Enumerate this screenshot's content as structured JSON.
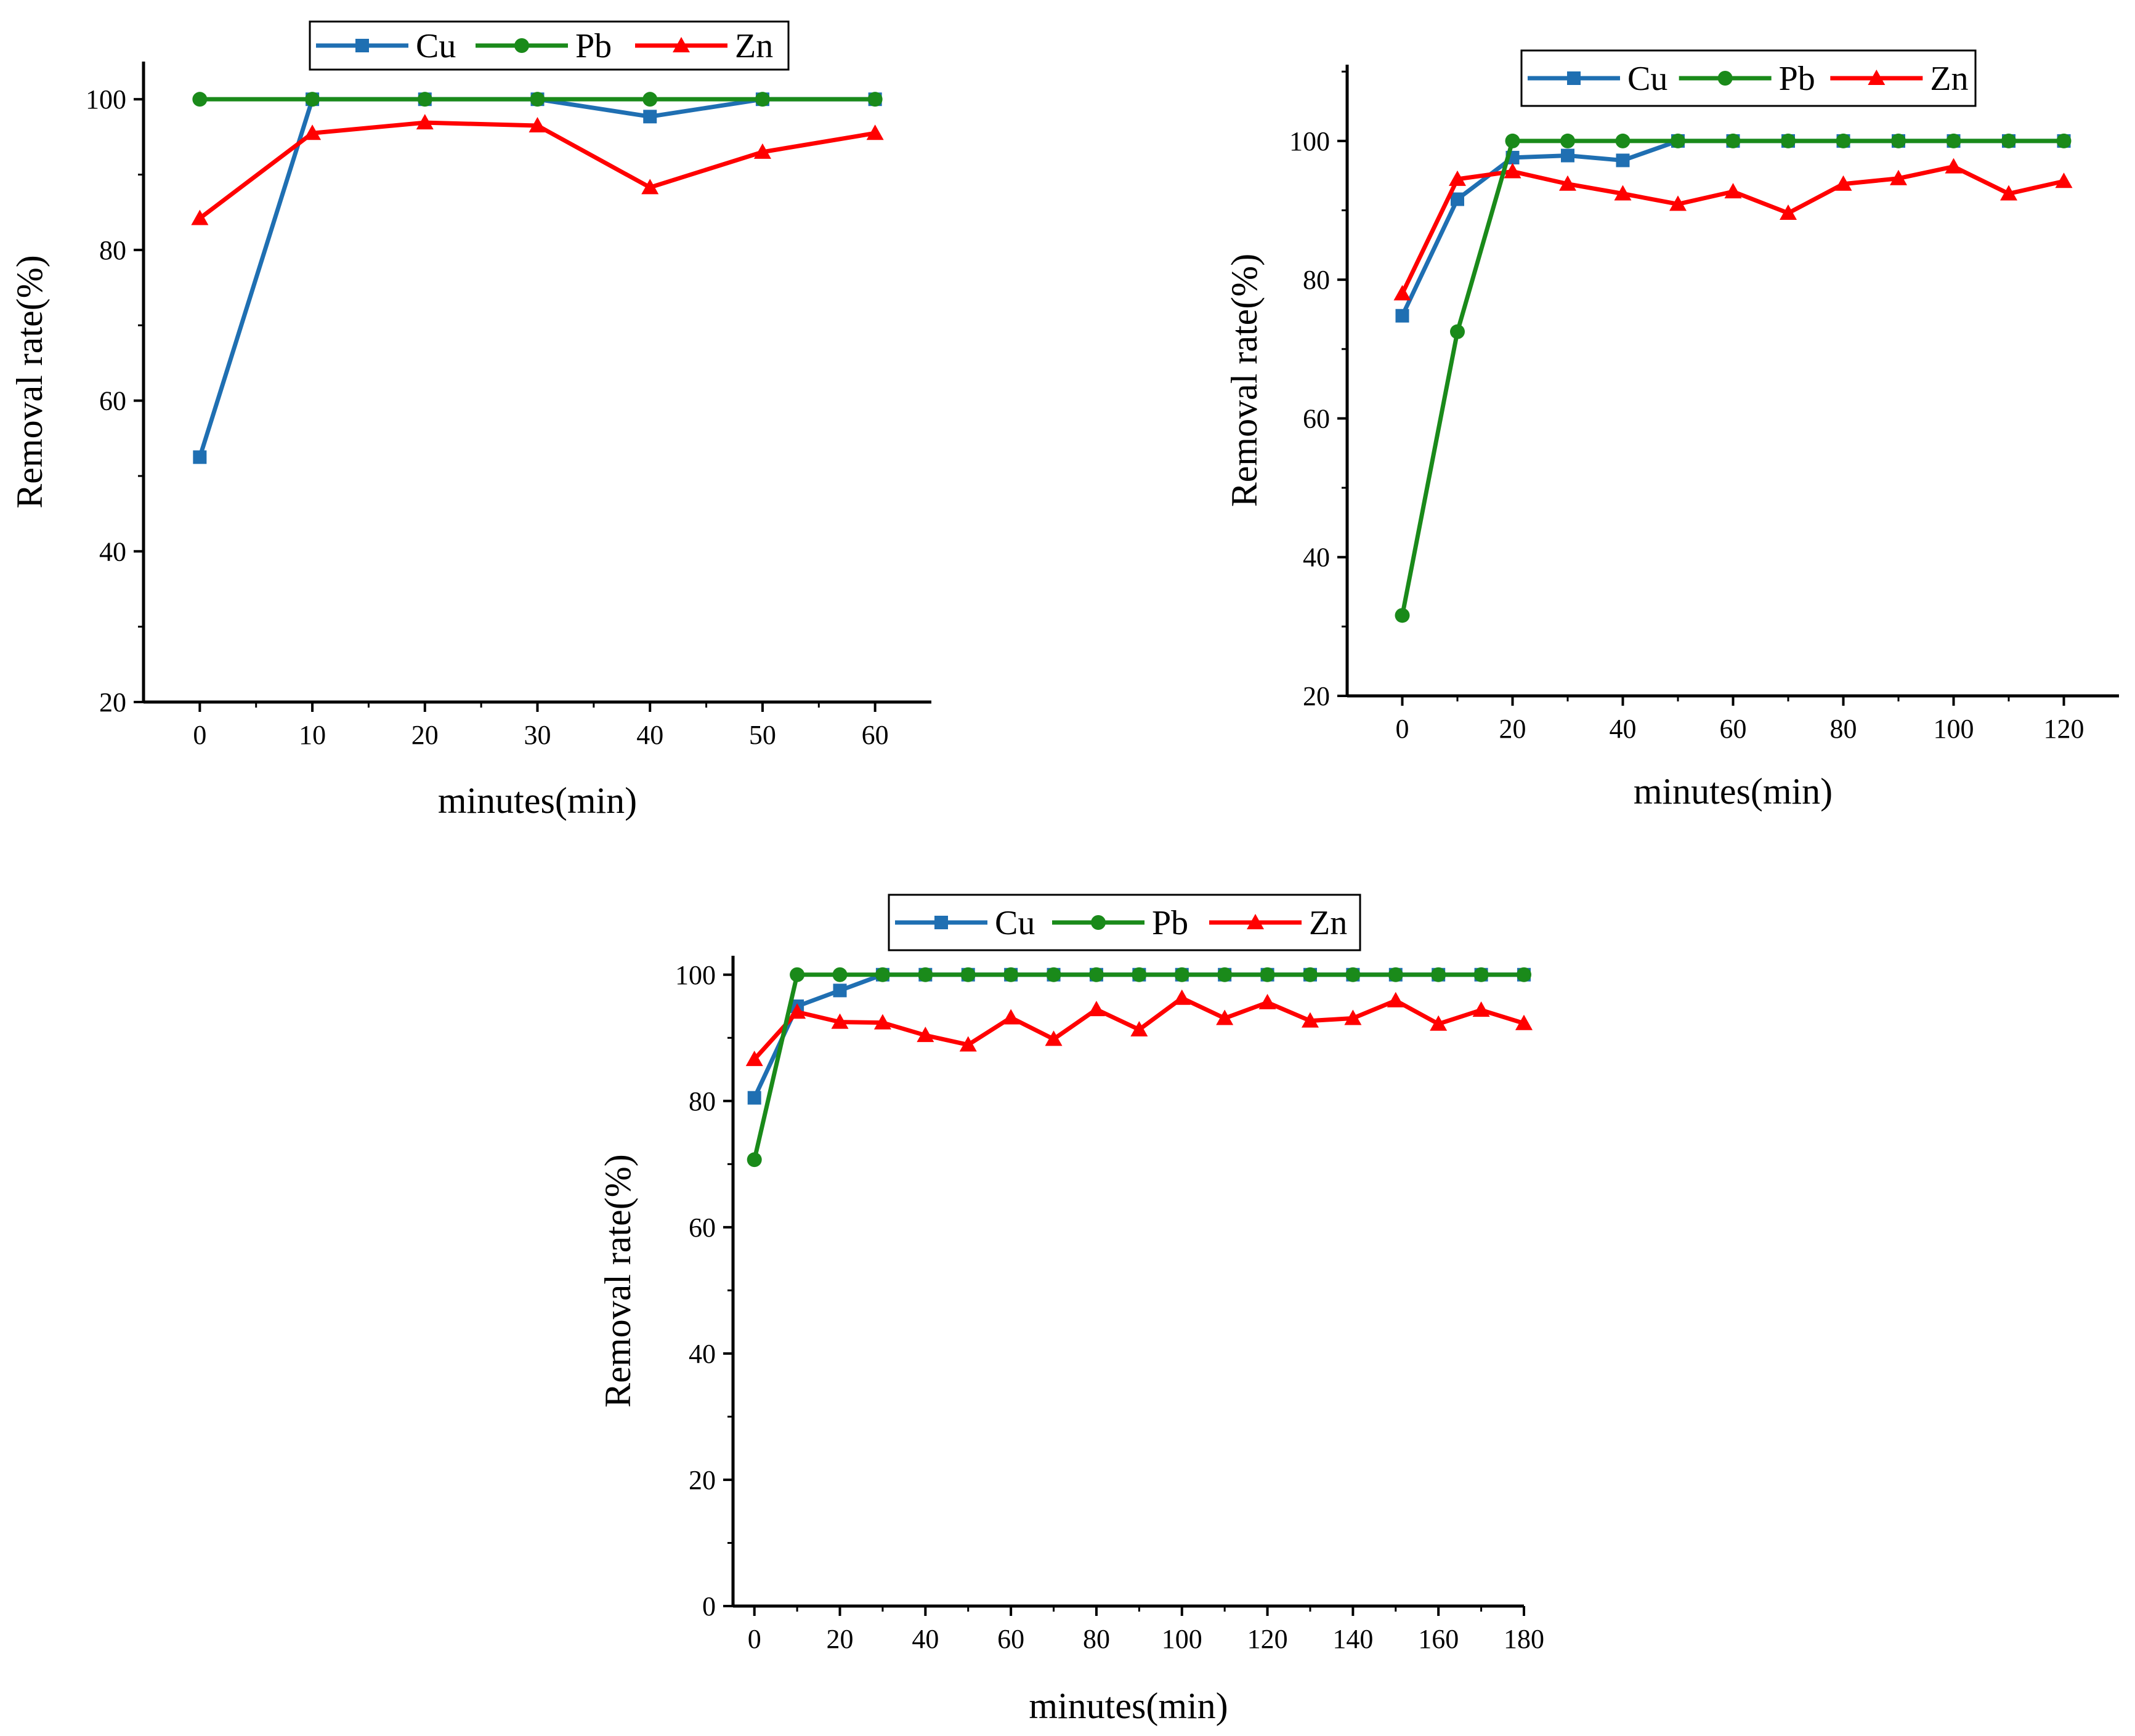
{
  "colors": {
    "Cu": "#1f6fb2",
    "Pb": "#1a8a1a",
    "Zn": "#ff0000",
    "axis": "#000000"
  },
  "chart_data": [
    {
      "type": "line",
      "xlabel": "minutes(min)",
      "ylabel": "Removal rate(%)",
      "xlim": [
        -5,
        65
      ],
      "ylim": [
        20,
        105
      ],
      "xticks": [
        0,
        10,
        20,
        30,
        40,
        50,
        60
      ],
      "yticks": [
        20,
        40,
        60,
        80,
        100
      ],
      "legend": [
        "Cu",
        "Pb",
        "Zn"
      ],
      "legend_position": "top",
      "series": [
        {
          "name": "Cu",
          "marker": "square",
          "x": [
            0,
            10,
            20,
            30,
            40,
            50,
            60
          ],
          "values": [
            52.5,
            100,
            100,
            100,
            97.7,
            100,
            100
          ]
        },
        {
          "name": "Pb",
          "marker": "circle",
          "x": [
            0,
            10,
            20,
            30,
            40,
            50,
            60
          ],
          "values": [
            100,
            100,
            100,
            100,
            100,
            100,
            100
          ]
        },
        {
          "name": "Zn",
          "marker": "triangle",
          "x": [
            0,
            10,
            20,
            30,
            40,
            50,
            60
          ],
          "values": [
            84.2,
            95.5,
            96.9,
            96.5,
            88.3,
            93.0,
            95.5
          ]
        }
      ]
    },
    {
      "type": "line",
      "xlabel": "minutes(min)",
      "ylabel": "Removal rate(%)",
      "xlim": [
        -10,
        130
      ],
      "ylim": [
        20,
        111
      ],
      "xticks": [
        0,
        20,
        40,
        60,
        80,
        100,
        120
      ],
      "yticks": [
        20,
        40,
        60,
        80,
        100
      ],
      "legend": [
        "Cu",
        "Pb",
        "Zn"
      ],
      "legend_position": "top",
      "series": [
        {
          "name": "Cu",
          "marker": "square",
          "x": [
            0,
            10,
            20,
            30,
            40,
            50,
            60,
            70,
            80,
            90,
            100,
            110,
            120
          ],
          "values": [
            74.8,
            91.6,
            97.6,
            97.9,
            97.2,
            100,
            100,
            100,
            100,
            100,
            100,
            100,
            100
          ]
        },
        {
          "name": "Pb",
          "marker": "circle",
          "x": [
            0,
            10,
            20,
            30,
            40,
            50,
            60,
            70,
            80,
            90,
            100,
            110,
            120
          ],
          "values": [
            31.6,
            72.5,
            100,
            100,
            100,
            100,
            100,
            100,
            100,
            100,
            100,
            100,
            100
          ]
        },
        {
          "name": "Zn",
          "marker": "triangle",
          "x": [
            0,
            10,
            20,
            30,
            40,
            50,
            60,
            70,
            80,
            90,
            100,
            110,
            120
          ],
          "values": [
            78.0,
            94.5,
            95.6,
            93.8,
            92.4,
            90.9,
            92.7,
            89.6,
            93.8,
            94.6,
            96.3,
            92.4,
            94.2
          ]
        }
      ]
    },
    {
      "type": "line",
      "xlabel": "minutes(min)",
      "ylabel": "Removal rate(%)",
      "xlim": [
        -5,
        180
      ],
      "ylim": [
        0,
        103
      ],
      "xticks": [
        0,
        20,
        40,
        60,
        80,
        100,
        120,
        140,
        160,
        180
      ],
      "yticks": [
        0,
        20,
        40,
        60,
        80,
        100
      ],
      "legend": [
        "Cu",
        "Pb",
        "Zn"
      ],
      "legend_position": "top",
      "series": [
        {
          "name": "Cu",
          "marker": "square",
          "x": [
            0,
            10,
            20,
            30,
            40,
            50,
            60,
            70,
            80,
            90,
            100,
            110,
            120,
            130,
            140,
            150,
            160,
            170,
            180
          ],
          "values": [
            80.5,
            95.0,
            97.5,
            100,
            100,
            100,
            100,
            100,
            100,
            100,
            100,
            100,
            100,
            100,
            100,
            100,
            100,
            100,
            100
          ]
        },
        {
          "name": "Pb",
          "marker": "circle",
          "x": [
            0,
            10,
            20,
            30,
            40,
            50,
            60,
            70,
            80,
            90,
            100,
            110,
            120,
            130,
            140,
            150,
            160,
            170,
            180
          ],
          "values": [
            70.7,
            100,
            100,
            100,
            100,
            100,
            100,
            100,
            100,
            100,
            100,
            100,
            100,
            100,
            100,
            100,
            100,
            100,
            100
          ]
        },
        {
          "name": "Zn",
          "marker": "triangle",
          "x": [
            0,
            10,
            20,
            30,
            40,
            50,
            60,
            70,
            80,
            90,
            100,
            110,
            120,
            130,
            140,
            150,
            160,
            170,
            180
          ],
          "values": [
            86.6,
            94.1,
            92.5,
            92.4,
            90.4,
            88.9,
            93.2,
            89.8,
            94.5,
            91.3,
            96.3,
            93.1,
            95.6,
            92.7,
            93.1,
            95.9,
            92.2,
            94.4,
            92.3
          ]
        }
      ]
    }
  ]
}
